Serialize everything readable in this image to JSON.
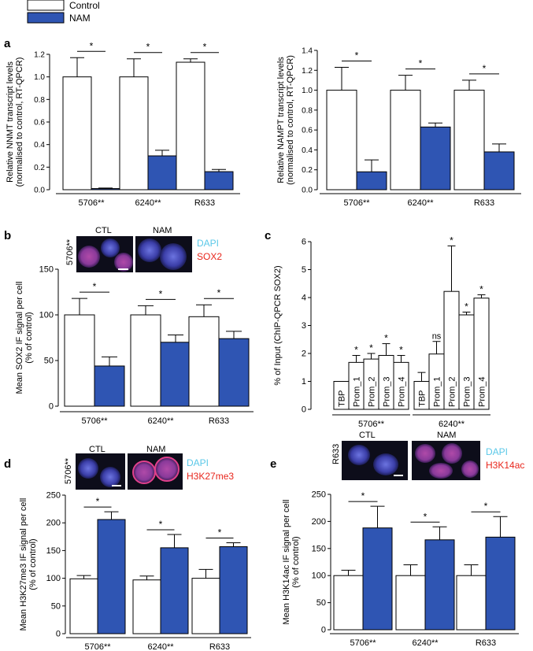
{
  "legend": {
    "entries": [
      {
        "label": "Control",
        "color": "#ffffff"
      },
      {
        "label": "NAM",
        "color": "#2f55b3"
      }
    ]
  },
  "colors": {
    "control": "#ffffff",
    "nam": "#2f55b3",
    "axis": "#000000",
    "dapi": "#5bc8e8",
    "sox2": "#e8261c"
  },
  "panels": {
    "a": "a",
    "b": "b",
    "c": "c",
    "d": "d",
    "e": "e"
  },
  "images": {
    "b": {
      "sample": "5706**",
      "ctl": "CTL",
      "nam": "NAM",
      "stain1": "DAPI",
      "stain2": "SOX2"
    },
    "d": {
      "sample": "5706**",
      "ctl": "CTL",
      "nam": "NAM",
      "stain1": "DAPI",
      "stain2": "H3K27me3"
    },
    "e": {
      "sample": "R633",
      "ctl": "CTL",
      "nam": "NAM",
      "stain1": "DAPI",
      "stain2": "H3K14ac"
    }
  },
  "chart_data": [
    {
      "id": "a1",
      "type": "bar",
      "ylabel": [
        "Relative NNMT transcript levels",
        "(normalised to control, RT-QPCR)"
      ],
      "ylim": [
        0,
        1.2
      ],
      "yticks": [
        0,
        0.2,
        0.4,
        0.6,
        0.8,
        1.0,
        1.2
      ],
      "groups": [
        "5706**",
        "6240**",
        "R633"
      ],
      "series": [
        {
          "name": "Control",
          "values": [
            1.0,
            1.0,
            1.13
          ],
          "errors": [
            0.17,
            0.16,
            0.03
          ]
        },
        {
          "name": "NAM",
          "values": [
            0.01,
            0.3,
            0.16
          ],
          "errors": [
            0.005,
            0.05,
            0.02
          ]
        }
      ],
      "significance": [
        "*",
        "*",
        "*"
      ]
    },
    {
      "id": "a2",
      "type": "bar",
      "ylabel": [
        "Relative NAMPT transcript levels",
        "(normalised to control, RT-QPCR)"
      ],
      "ylim": [
        0,
        1.4
      ],
      "yticks": [
        0,
        0.2,
        0.4,
        0.6,
        0.8,
        1.0,
        1.2,
        1.4
      ],
      "groups": [
        "5706**",
        "6240**",
        "R633"
      ],
      "series": [
        {
          "name": "Control",
          "values": [
            1.0,
            1.0,
            1.0
          ],
          "errors": [
            0.23,
            0.15,
            0.1
          ]
        },
        {
          "name": "NAM",
          "values": [
            0.18,
            0.63,
            0.38
          ],
          "errors": [
            0.12,
            0.04,
            0.08
          ]
        }
      ],
      "significance": [
        "*",
        "*",
        "*"
      ]
    },
    {
      "id": "b",
      "type": "bar",
      "ylabel": [
        "Mean SOX2  IF signal per cell",
        "(% of control)"
      ],
      "ylim": [
        0,
        150
      ],
      "yticks": [
        0,
        50,
        100,
        150
      ],
      "groups": [
        "5706**",
        "6240**",
        "R633"
      ],
      "series": [
        {
          "name": "Control",
          "values": [
            100,
            100,
            98
          ],
          "errors": [
            18,
            10,
            13
          ]
        },
        {
          "name": "NAM",
          "values": [
            44,
            70,
            74
          ],
          "errors": [
            10,
            8,
            8
          ]
        }
      ],
      "significance": [
        "*",
        "*",
        "*"
      ]
    },
    {
      "id": "c",
      "type": "bar",
      "ylabel": [
        "% of Input (ChIP-QPCR SOX2)"
      ],
      "ylim": [
        0,
        6
      ],
      "yticks": [
        0,
        1,
        2,
        3,
        4,
        5,
        6
      ],
      "groups": [
        "5706**",
        "6240**"
      ],
      "bars": [
        {
          "group": 0,
          "label": "TBP",
          "value": 1.0,
          "error": 0,
          "sig": ""
        },
        {
          "group": 0,
          "label": "Prom_1",
          "value": 1.68,
          "error": 0.25,
          "sig": "*"
        },
        {
          "group": 0,
          "label": "Prom_2",
          "value": 1.8,
          "error": 0.2,
          "sig": "*"
        },
        {
          "group": 0,
          "label": "Prom_3",
          "value": 1.93,
          "error": 0.42,
          "sig": "*"
        },
        {
          "group": 0,
          "label": "Prom_4",
          "value": 1.68,
          "error": 0.25,
          "sig": "*"
        },
        {
          "group": 1,
          "label": "TBP",
          "value": 1.0,
          "error": 0.32,
          "sig": ""
        },
        {
          "group": 1,
          "label": "Prom_1",
          "value": 1.98,
          "error": 0.45,
          "sig": "ns"
        },
        {
          "group": 1,
          "label": "Prom_2",
          "value": 4.22,
          "error": 1.63,
          "sig": "*"
        },
        {
          "group": 1,
          "label": "Prom_3",
          "value": 3.38,
          "error": 0.1,
          "sig": "*"
        },
        {
          "group": 1,
          "label": "Prom_4",
          "value": 3.98,
          "error": 0.12,
          "sig": "*"
        }
      ]
    },
    {
      "id": "d",
      "type": "bar",
      "ylabel": [
        "Mean H3K27me3  IF signal per cell",
        "(% of control)"
      ],
      "ylim": [
        0,
        250
      ],
      "yticks": [
        0,
        50,
        100,
        150,
        200,
        250
      ],
      "groups": [
        "5706**",
        "6240**",
        "R633"
      ],
      "series": [
        {
          "name": "Control",
          "values": [
            99,
            97,
            100
          ],
          "errors": [
            6,
            7,
            16
          ]
        },
        {
          "name": "NAM",
          "values": [
            206,
            155,
            157
          ],
          "errors": [
            14,
            24,
            7
          ]
        }
      ],
      "significance": [
        "*",
        "*",
        "*"
      ]
    },
    {
      "id": "e",
      "type": "bar",
      "ylabel": [
        "Mean H3K14ac  IF signal per cell",
        "(% of control)"
      ],
      "ylim": [
        0,
        250
      ],
      "yticks": [
        0,
        50,
        100,
        150,
        200,
        250
      ],
      "groups": [
        "5706**",
        "6240**",
        "R633"
      ],
      "series": [
        {
          "name": "Control",
          "values": [
            100,
            100,
            100
          ],
          "errors": [
            10,
            20,
            20
          ]
        },
        {
          "name": "NAM",
          "values": [
            188,
            166,
            171
          ],
          "errors": [
            40,
            24,
            38
          ]
        }
      ],
      "significance": [
        "*",
        "*",
        "*"
      ]
    }
  ]
}
